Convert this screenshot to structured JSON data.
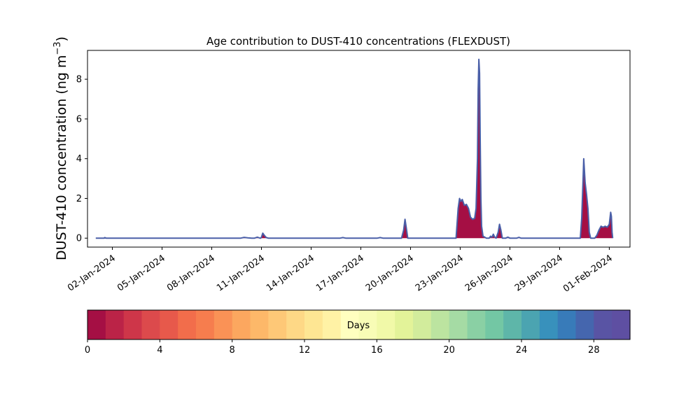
{
  "chart_data": {
    "type": "area",
    "title": "Age contribution to DUST-410 concentrations (FLEXDUST)",
    "ylabel_main": "DUST-410 concentration (ng m",
    "ylabel_exp": "−3",
    "ylabel_close": ")",
    "xlabel": "",
    "x_range": [
      "2023-12-31T12:00",
      "2024-02-02T06:00"
    ],
    "ylim": [
      -0.45,
      9.45
    ],
    "yticks": [
      0,
      2,
      4,
      6,
      8
    ],
    "xticks": [
      {
        "date": "2024-01-02",
        "label": "02-Jan-2024"
      },
      {
        "date": "2024-01-05",
        "label": "05-Jan-2024"
      },
      {
        "date": "2024-01-08",
        "label": "08-Jan-2024"
      },
      {
        "date": "2024-01-11",
        "label": "11-Jan-2024"
      },
      {
        "date": "2024-01-14",
        "label": "14-Jan-2024"
      },
      {
        "date": "2024-01-17",
        "label": "17-Jan-2024"
      },
      {
        "date": "2024-01-20",
        "label": "20-Jan-2024"
      },
      {
        "date": "2024-01-23",
        "label": "23-Jan-2024"
      },
      {
        "date": "2024-01-26",
        "label": "26-Jan-2024"
      },
      {
        "date": "2024-01-29",
        "label": "29-Jan-2024"
      },
      {
        "date": "2024-02-01",
        "label": "01-Feb-2024"
      }
    ],
    "grid": false,
    "series": [
      {
        "color": "#4a5fa8",
        "points": [
          [
            "2024-01-01T00:00",
            0.0
          ],
          [
            "2024-01-01T12:00",
            0.0
          ],
          [
            "2024-01-01T13:00",
            0.03
          ],
          [
            "2024-01-01T15:00",
            0.0
          ],
          [
            "2024-01-07T18:00",
            0.0
          ],
          [
            "2024-01-08T00:00",
            0.0
          ],
          [
            "2024-01-09T18:00",
            0.0
          ],
          [
            "2024-01-09T23:00",
            0.04
          ],
          [
            "2024-01-10T04:00",
            0.02
          ],
          [
            "2024-01-10T10:00",
            0.0
          ],
          [
            "2024-01-10T14:00",
            0.0
          ],
          [
            "2024-01-10T18:00",
            0.05
          ],
          [
            "2024-01-10T22:00",
            0.0
          ],
          [
            "2024-01-10T23:00",
            0.0
          ],
          [
            "2024-01-11T00:00",
            0.05
          ],
          [
            "2024-01-11T02:00",
            0.25
          ],
          [
            "2024-01-11T04:00",
            0.15
          ],
          [
            "2024-01-11T07:00",
            0.03
          ],
          [
            "2024-01-11T10:00",
            0.0
          ],
          [
            "2024-01-15T18:00",
            0.0
          ],
          [
            "2024-01-15T22:00",
            0.03
          ],
          [
            "2024-01-16T02:00",
            0.0
          ],
          [
            "2024-01-18T00:00",
            0.0
          ],
          [
            "2024-01-18T04:00",
            0.03
          ],
          [
            "2024-01-18T08:00",
            0.0
          ],
          [
            "2024-01-19T11:00",
            0.0
          ],
          [
            "2024-01-19T14:00",
            0.4
          ],
          [
            "2024-01-19T16:00",
            0.95
          ],
          [
            "2024-01-19T18:00",
            0.5
          ],
          [
            "2024-01-19T20:00",
            0.0
          ],
          [
            "2024-01-22T14:00",
            0.0
          ],
          [
            "2024-01-22T18:00",
            0.0
          ],
          [
            "2024-01-22T21:00",
            1.5
          ],
          [
            "2024-01-22T23:00",
            2.0
          ],
          [
            "2024-01-23T01:00",
            1.85
          ],
          [
            "2024-01-23T03:00",
            1.95
          ],
          [
            "2024-01-23T06:00",
            1.65
          ],
          [
            "2024-01-23T09:00",
            1.7
          ],
          [
            "2024-01-23T12:00",
            1.5
          ],
          [
            "2024-01-23T15:00",
            1.05
          ],
          [
            "2024-01-23T18:00",
            0.95
          ],
          [
            "2024-01-23T21:00",
            1.0
          ],
          [
            "2024-01-23T23:00",
            1.5
          ],
          [
            "2024-01-24T01:00",
            4.0
          ],
          [
            "2024-01-24T02:00",
            7.5
          ],
          [
            "2024-01-24T03:00",
            9.0
          ],
          [
            "2024-01-24T04:00",
            8.3
          ],
          [
            "2024-01-24T05:00",
            5.0
          ],
          [
            "2024-01-24T06:00",
            2.0
          ],
          [
            "2024-01-24T07:00",
            0.6
          ],
          [
            "2024-01-24T09:00",
            0.1
          ],
          [
            "2024-01-24T14:00",
            0.0
          ],
          [
            "2024-01-24T18:00",
            0.0
          ],
          [
            "2024-01-24T20:00",
            0.1
          ],
          [
            "2024-01-24T22:00",
            0.05
          ],
          [
            "2024-01-25T00:00",
            0.2
          ],
          [
            "2024-01-25T02:00",
            0.05
          ],
          [
            "2024-01-25T04:00",
            0.0
          ],
          [
            "2024-01-25T07:00",
            0.3
          ],
          [
            "2024-01-25T09:00",
            0.7
          ],
          [
            "2024-01-25T11:00",
            0.4
          ],
          [
            "2024-01-25T13:00",
            0.0
          ],
          [
            "2024-01-25T18:00",
            0.0
          ],
          [
            "2024-01-25T21:00",
            0.05
          ],
          [
            "2024-01-26T00:00",
            0.0
          ],
          [
            "2024-01-26T10:00",
            0.0
          ],
          [
            "2024-01-26T13:00",
            0.04
          ],
          [
            "2024-01-26T16:00",
            0.0
          ],
          [
            "2024-01-30T06:00",
            0.0
          ],
          [
            "2024-01-30T08:00",
            1.0
          ],
          [
            "2024-01-30T10:00",
            3.0
          ],
          [
            "2024-01-30T11:00",
            4.0
          ],
          [
            "2024-01-30T13:00",
            2.8
          ],
          [
            "2024-01-30T15:00",
            2.2
          ],
          [
            "2024-01-30T17:00",
            1.5
          ],
          [
            "2024-01-30T19:00",
            0.3
          ],
          [
            "2024-01-30T21:00",
            0.0
          ],
          [
            "2024-01-31T03:00",
            0.0
          ],
          [
            "2024-01-31T06:00",
            0.15
          ],
          [
            "2024-01-31T09:00",
            0.4
          ],
          [
            "2024-01-31T12:00",
            0.6
          ],
          [
            "2024-01-31T15:00",
            0.55
          ],
          [
            "2024-01-31T18:00",
            0.6
          ],
          [
            "2024-01-31T21:00",
            0.55
          ],
          [
            "2024-02-01T00:00",
            0.7
          ],
          [
            "2024-02-01T02:00",
            1.3
          ],
          [
            "2024-02-01T03:00",
            1.1
          ],
          [
            "2024-02-01T04:00",
            0.3
          ],
          [
            "2024-02-01T05:00",
            0.0
          ]
        ]
      }
    ],
    "colorbar": {
      "label": "Days",
      "ticks": [
        0,
        4,
        8,
        12,
        16,
        20,
        24,
        28
      ],
      "range": [
        0,
        30
      ],
      "colors": [
        "#a50f44",
        "#bb2347",
        "#ce3649",
        "#dc4a4c",
        "#e7594b",
        "#f26d4b",
        "#f67d4e",
        "#fa9256",
        "#fca75f",
        "#fdb869",
        "#fec877",
        "#fed886",
        "#fee693",
        "#fff2a5",
        "#ffffbf",
        "#f8fcb6",
        "#f1f9a8",
        "#e3f399",
        "#d2ec9c",
        "#bce4a0",
        "#a5dba4",
        "#8ad0a4",
        "#73c7a4",
        "#5eb6a9",
        "#4ba4b1",
        "#3891bc",
        "#387bb9",
        "#4566ae",
        "#5954a4",
        "#5e4fa2"
      ]
    }
  }
}
